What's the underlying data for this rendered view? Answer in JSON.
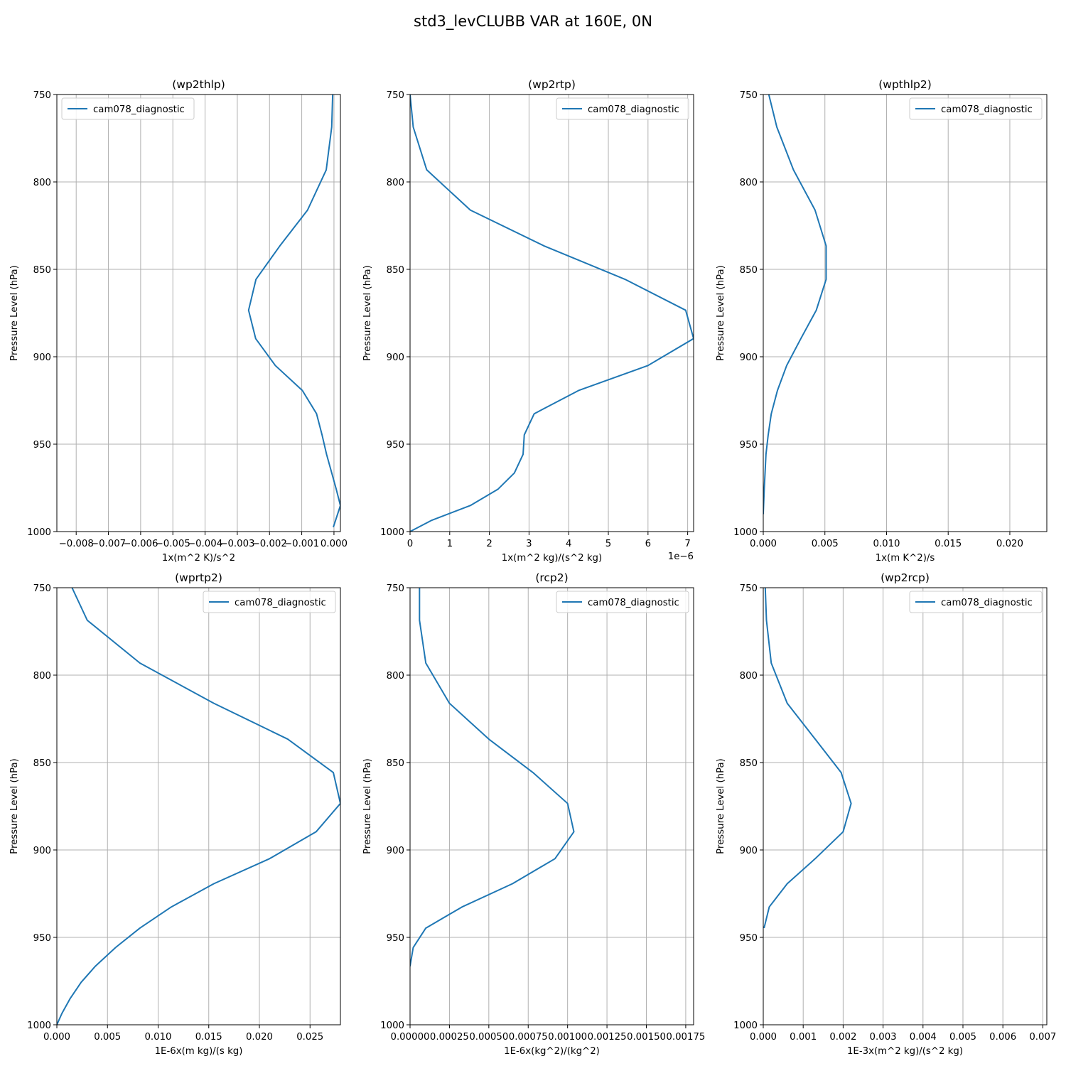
{
  "figure_title": "std3_levCLUBB VAR at 160E, 0N",
  "colors": {
    "series": "#1f77b4",
    "grid": "#b0b0b0"
  },
  "chart_data": [
    {
      "type": "line",
      "title": "(wp2thlp)",
      "xlabel": "1x(m^2 K)/s^2",
      "ylabel": "Pressure Level (hPa)",
      "xlim": [
        -0.0086,
        0.0002
      ],
      "ylim": [
        1000,
        750
      ],
      "xticks": [
        -0.008,
        -0.007,
        -0.006,
        -0.005,
        -0.004,
        -0.003,
        -0.002,
        -0.001,
        0.0
      ],
      "xtick_labels": [
        "−0.008",
        "−0.007",
        "−0.006",
        "−0.005",
        "−0.004",
        "−0.003",
        "−0.002",
        "−0.001",
        "0.000"
      ],
      "yticks": [
        750,
        800,
        850,
        900,
        950,
        1000
      ],
      "ytick_labels": [
        "750",
        "800",
        "850",
        "900",
        "950",
        "1000"
      ],
      "offset_text": "",
      "grid": true,
      "legend_position": "top-left",
      "series": [
        {
          "name": "cam078_diagnostic",
          "x": [
            -4e-05,
            -7e-05,
            -0.00024,
            -0.00082,
            -0.00168,
            -0.00242,
            -0.00265,
            -0.00243,
            -0.00182,
            -0.00098,
            -0.00054,
            -0.00037,
            -0.00023,
            7e-05,
            0.0002,
            -2e-05
          ],
          "y": [
            750,
            768.6,
            793.1,
            816.1,
            836.6,
            855.7,
            873.4,
            889.6,
            905,
            919.3,
            932.6,
            944.7,
            955.8,
            975.7,
            985.1,
            997.5
          ]
        }
      ]
    },
    {
      "type": "line",
      "title": "(wp2rtp)",
      "xlabel": "1x(m^2 kg)/(s^2 kg)",
      "ylabel": "Pressure Level (hPa)",
      "xlim": [
        0,
        7.15e-06
      ],
      "ylim": [
        1000,
        750
      ],
      "xticks": [
        0,
        1e-06,
        2e-06,
        3e-06,
        4e-06,
        5e-06,
        6e-06,
        7e-06
      ],
      "xtick_labels": [
        "0",
        "1",
        "2",
        "3",
        "4",
        "5",
        "6",
        "7"
      ],
      "yticks": [
        750,
        800,
        850,
        900,
        950,
        1000
      ],
      "ytick_labels": [
        "750",
        "800",
        "850",
        "900",
        "950",
        "1000"
      ],
      "offset_text": "1e−6",
      "grid": true,
      "legend_position": "top-right",
      "series": [
        {
          "name": "cam078_diagnostic",
          "x": [
            0.0,
            8e-08,
            4.2e-07,
            1.52e-06,
            3.38e-06,
            5.42e-06,
            6.95e-06,
            7.15e-06,
            6e-06,
            4.25e-06,
            3.13e-06,
            2.88e-06,
            2.85e-06,
            2.63e-06,
            2.22e-06,
            1.52e-06,
            5.5e-07,
            0.0
          ],
          "y": [
            750,
            768.6,
            793.1,
            816.1,
            836.6,
            855.7,
            873.4,
            889.6,
            905,
            919.3,
            932.6,
            944.7,
            955.8,
            966.5,
            975.7,
            985.1,
            993.5,
            1000
          ]
        }
      ]
    },
    {
      "type": "line",
      "title": "(wpthlp2)",
      "xlabel": "1x(m K^2)/s",
      "ylabel": "Pressure Level (hPa)",
      "xlim": [
        0,
        0.023
      ],
      "ylim": [
        1000,
        750
      ],
      "xticks": [
        0.0,
        0.005,
        0.01,
        0.015,
        0.02
      ],
      "xtick_labels": [
        "0.000",
        "0.005",
        "0.010",
        "0.015",
        "0.020"
      ],
      "yticks": [
        750,
        800,
        850,
        900,
        950,
        1000
      ],
      "ytick_labels": [
        "750",
        "800",
        "850",
        "900",
        "950",
        "1000"
      ],
      "offset_text": "",
      "grid": true,
      "legend_position": "top-right",
      "series": [
        {
          "name": "cam078_diagnostic",
          "x": [
            0.00045,
            0.0011,
            0.00245,
            0.0042,
            0.0051,
            0.0051,
            0.0043,
            0.00305,
            0.0019,
            0.00115,
            0.00065,
            0.0004,
            0.00022,
            8e-05,
            0.0
          ],
          "y": [
            750,
            768.6,
            793.1,
            816.1,
            836.6,
            855.7,
            873.4,
            889.6,
            905,
            919.3,
            932.6,
            944.7,
            955.8,
            975.7,
            990
          ]
        }
      ]
    },
    {
      "type": "line",
      "title": "(wprtp2)",
      "xlabel": "1E-6x(m kg)/(s kg)",
      "ylabel": "Pressure Level (hPa)",
      "xlim": [
        0,
        0.028
      ],
      "ylim": [
        1000,
        750
      ],
      "xticks": [
        0.0,
        0.005,
        0.01,
        0.015,
        0.02,
        0.025
      ],
      "xtick_labels": [
        "0.000",
        "0.005",
        "0.010",
        "0.015",
        "0.020",
        "0.025"
      ],
      "yticks": [
        750,
        800,
        850,
        900,
        950,
        1000
      ],
      "ytick_labels": [
        "750",
        "800",
        "850",
        "900",
        "950",
        "1000"
      ],
      "offset_text": "",
      "grid": true,
      "legend_position": "top-right",
      "series": [
        {
          "name": "cam078_diagnostic",
          "x": [
            0.0015,
            0.003,
            0.0082,
            0.0155,
            0.0228,
            0.0273,
            0.028,
            0.0256,
            0.021,
            0.0155,
            0.0113,
            0.0082,
            0.0058,
            0.0038,
            0.0024,
            0.0013,
            0.0005,
            0.0
          ],
          "y": [
            750,
            768.6,
            793.1,
            816.1,
            836.6,
            855.7,
            873.4,
            889.6,
            905,
            919.3,
            932.6,
            944.7,
            955.8,
            966.5,
            975.7,
            985.1,
            993.5,
            1000
          ]
        }
      ]
    },
    {
      "type": "line",
      "title": "(rcp2)",
      "xlabel": "1E-6x(kg^2)/(kg^2)",
      "ylabel": "Pressure Level (hPa)",
      "xlim": [
        0,
        0.0018
      ],
      "ylim": [
        1000,
        750
      ],
      "xticks": [
        0.0,
        0.00025,
        0.0005,
        0.00075,
        0.001,
        0.00125,
        0.0015,
        0.00175
      ],
      "xtick_labels": [
        "0.00000",
        "0.00025",
        "0.00050",
        "0.00075",
        "0.00100",
        "0.00125",
        "0.00150",
        "0.00175"
      ],
      "yticks": [
        750,
        800,
        850,
        900,
        950,
        1000
      ],
      "ytick_labels": [
        "750",
        "800",
        "850",
        "900",
        "950",
        "1000"
      ],
      "offset_text": "",
      "grid": true,
      "legend_position": "top-right",
      "series": [
        {
          "name": "cam078_diagnostic",
          "x": [
            6e-05,
            6e-05,
            0.0001,
            0.00025,
            0.0005,
            0.00078,
            0.001,
            0.00104,
            0.00092,
            0.00065,
            0.00033,
            0.0001,
            2e-05,
            0.0
          ],
          "y": [
            750,
            768.6,
            793.1,
            816.1,
            836.6,
            855.7,
            873.4,
            889.6,
            905,
            919.3,
            932.6,
            944.7,
            955.8,
            966.5
          ]
        }
      ]
    },
    {
      "type": "line",
      "title": "(wp2rcp)",
      "xlabel": "1E-3x(m^2 kg)/(s^2 kg)",
      "ylabel": "Pressure Level (hPa)",
      "xlim": [
        0,
        0.0071
      ],
      "ylim": [
        1000,
        750
      ],
      "xticks": [
        0.0,
        0.001,
        0.002,
        0.003,
        0.004,
        0.005,
        0.006,
        0.007
      ],
      "xtick_labels": [
        "0.000",
        "0.001",
        "0.002",
        "0.003",
        "0.004",
        "0.005",
        "0.006",
        "0.007"
      ],
      "yticks": [
        750,
        800,
        850,
        900,
        950,
        1000
      ],
      "ytick_labels": [
        "750",
        "800",
        "850",
        "900",
        "950",
        "1000"
      ],
      "offset_text": "",
      "grid": true,
      "legend_position": "top-right",
      "series": [
        {
          "name": "cam078_diagnostic",
          "x": [
            5e-05,
            8e-05,
            0.0002,
            0.0006,
            0.0013,
            0.00195,
            0.0022,
            0.002,
            0.0013,
            0.0006,
            0.00015,
            2e-05
          ],
          "y": [
            750,
            768.6,
            793.1,
            816.1,
            836.6,
            855.7,
            873.4,
            889.6,
            905,
            919.3,
            932.6,
            944.7
          ]
        }
      ]
    }
  ]
}
